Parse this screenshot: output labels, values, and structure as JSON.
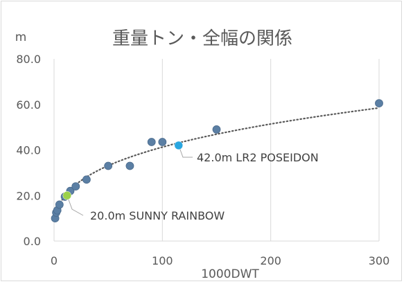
{
  "chart_data": {
    "type": "scatter",
    "title": "重量トン・全幅の関係",
    "xlabel": "1000DWT",
    "ylabel": "m",
    "xlim": [
      0,
      300
    ],
    "ylim": [
      0,
      80
    ],
    "x_ticks": [
      0,
      100,
      200,
      300
    ],
    "y_ticks": [
      0,
      20,
      40,
      60,
      80
    ],
    "x_tick_labels": [
      "0",
      "100",
      "200",
      "300"
    ],
    "y_tick_labels": [
      "0.0",
      "20.0",
      "40.0",
      "60.0",
      "80.0"
    ],
    "grid": "vertical",
    "trendline": "power",
    "series": [
      {
        "points": [
          [
            1,
            10
          ],
          [
            2,
            12.5
          ],
          [
            3,
            13.5
          ],
          [
            5,
            16
          ],
          [
            10,
            19.5
          ],
          [
            12,
            20
          ],
          [
            15,
            22
          ],
          [
            20,
            24
          ],
          [
            30,
            27
          ],
          [
            50,
            33
          ],
          [
            70,
            33
          ],
          [
            90,
            43.5
          ],
          [
            100,
            43.5
          ],
          [
            115,
            42
          ],
          [
            150,
            49
          ],
          [
            300,
            60.5
          ]
        ],
        "color": "#5b7fa4"
      }
    ],
    "highlights": [
      {
        "x": 12,
        "y": 20,
        "label": "20.0m SUNNY RAINBOW",
        "color": "#9bd14a"
      },
      {
        "x": 115,
        "y": 42,
        "label": "42.0m LR2 POSEIDON",
        "color": "#29a6e0"
      }
    ]
  }
}
